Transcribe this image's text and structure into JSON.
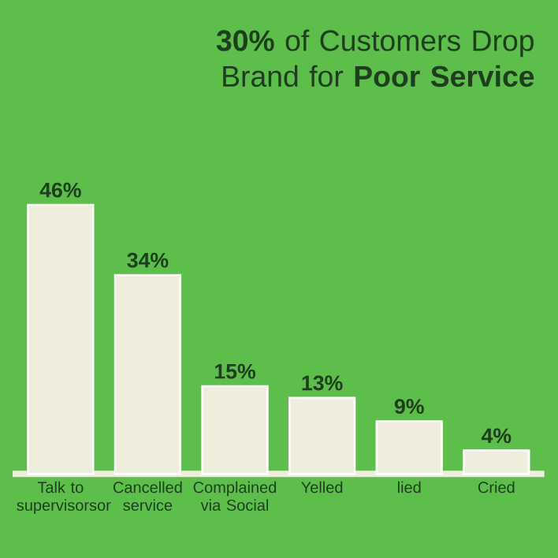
{
  "chart_data": {
    "type": "bar",
    "title": "**30%** of Customers Drop Brand for **Poor Service**",
    "categories": [
      "Talk to supervisorsor",
      "Cancelled service",
      "Complained via Social",
      "Yelled",
      "lied",
      "Cried"
    ],
    "values": [
      46,
      34,
      15,
      13,
      9,
      4
    ],
    "value_labels": [
      "46%",
      "34%",
      "15%",
      "13%",
      "9%",
      "4%"
    ],
    "color": "#efeedd"
  }
}
